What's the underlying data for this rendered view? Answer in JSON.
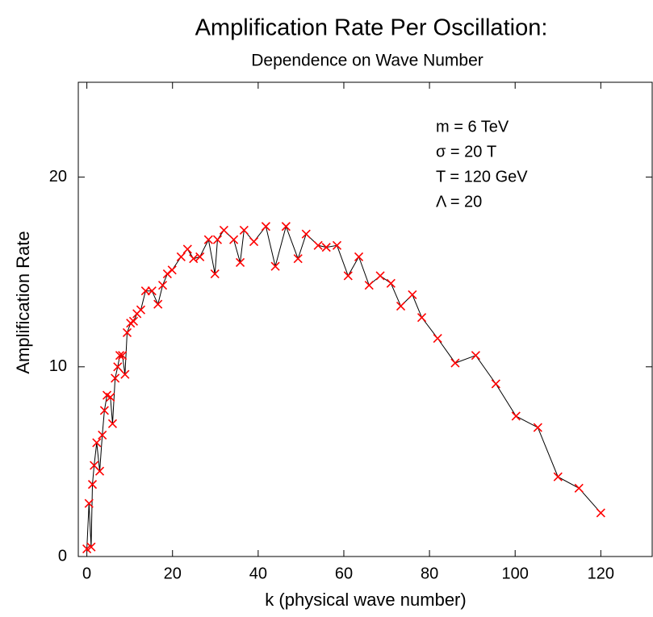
{
  "chart_data": {
    "type": "line",
    "title": "Amplification Rate Per Oscillation:",
    "subtitle": "Dependence on Wave Number",
    "xlabel": "k (physical wave number)",
    "ylabel": "Amplification Rate",
    "annotations": [
      "m = 6 TeV",
      "σ = 20 T",
      "T = 120 GeV",
      "Λ = 20"
    ],
    "x": [
      0,
      0.5,
      1,
      1.3,
      1.7,
      2.3,
      3,
      3.6,
      4.1,
      4.7,
      5.5,
      6,
      6.6,
      7.2,
      7.7,
      8.3,
      8.9,
      9.4,
      10.2,
      10.9,
      11.7,
      12.6,
      13.7,
      15.2,
      16.6,
      17.7,
      18.8,
      19.9,
      22,
      23.5,
      24.9,
      26.4,
      28.4,
      29.9,
      30.5,
      32,
      34.3,
      35.8,
      36.7,
      39,
      41.8,
      44,
      46.5,
      49.3,
      51.2,
      54,
      55.9,
      58.4,
      61,
      63.5,
      65.9,
      68.5,
      71,
      73.3,
      76,
      78.2,
      81.9,
      86,
      90.8,
      95.5,
      100.2,
      105.3,
      110,
      114.9,
      120
    ],
    "values": [
      0.4,
      2.8,
      0.5,
      3.8,
      4.8,
      6.0,
      4.5,
      6.4,
      7.7,
      8.5,
      8.4,
      7.0,
      9.4,
      10.0,
      10.6,
      10.6,
      9.6,
      11.8,
      12.3,
      12.4,
      12.8,
      13.0,
      14.0,
      14.0,
      13.3,
      14.3,
      14.9,
      15.1,
      15.8,
      16.2,
      15.7,
      15.8,
      16.7,
      14.9,
      16.7,
      17.2,
      16.7,
      15.5,
      17.2,
      16.6,
      17.4,
      15.3,
      17.4,
      15.7,
      17.0,
      16.4,
      16.3,
      16.4,
      14.8,
      15.8,
      14.3,
      14.8,
      14.4,
      13.2,
      13.8,
      12.6,
      11.5,
      10.2,
      10.6,
      9.1,
      7.4,
      6.8,
      4.2,
      3.6,
      2.3
    ],
    "marker_color": "#ff0000",
    "line_color": "#000000",
    "xlim": [
      -2,
      132
    ],
    "ylim": [
      0,
      25
    ],
    "xticks": [
      0,
      20,
      40,
      60,
      80,
      100,
      120
    ],
    "yticks": [
      0,
      10,
      20
    ],
    "grid": false
  }
}
